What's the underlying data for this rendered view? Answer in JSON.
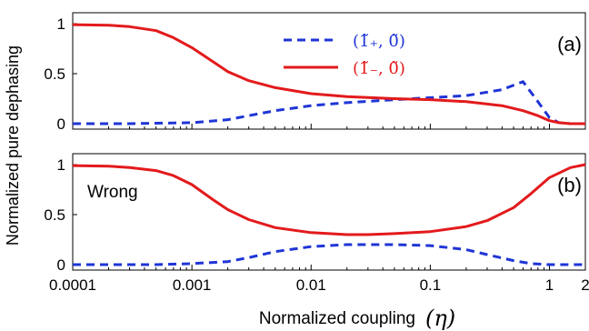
{
  "figure": {
    "ylabel": "Normalized pure dephasing",
    "xlabel": "Normalized coupling",
    "xlabel_symbol": "(η)"
  },
  "chart_data": [
    {
      "type": "line",
      "panel_label": "(a)",
      "x_scale": "log",
      "xlim": [
        0.0001,
        2
      ],
      "ylim": [
        0,
        1
      ],
      "y_ticks": [
        "0",
        "0.5",
        "1"
      ],
      "legend": {
        "placement": "top-center"
      },
      "grid": false,
      "series": [
        {
          "name": "(1̃₊, 0̃)",
          "color": "#1f35d6",
          "style": "dashed",
          "x": [
            0.0001,
            0.0003,
            0.001,
            0.002,
            0.003,
            0.005,
            0.01,
            0.02,
            0.05,
            0.1,
            0.2,
            0.4,
            0.6,
            0.8,
            1.0,
            1.2,
            1.5,
            2.0
          ],
          "y": [
            0.0,
            0.0,
            0.01,
            0.04,
            0.08,
            0.13,
            0.18,
            0.21,
            0.24,
            0.26,
            0.28,
            0.34,
            0.42,
            0.22,
            0.06,
            0.01,
            0.0,
            0.0
          ]
        },
        {
          "name": "(1̃₋, 0̃)",
          "color": "#e31a1c",
          "style": "solid",
          "x": [
            0.0001,
            0.0002,
            0.0003,
            0.0005,
            0.0007,
            0.001,
            0.0015,
            0.002,
            0.003,
            0.005,
            0.01,
            0.02,
            0.05,
            0.1,
            0.2,
            0.4,
            0.6,
            0.8,
            1.0,
            1.2,
            1.5,
            2.0
          ],
          "y": [
            0.99,
            0.985,
            0.97,
            0.93,
            0.86,
            0.76,
            0.62,
            0.52,
            0.43,
            0.36,
            0.3,
            0.27,
            0.25,
            0.24,
            0.22,
            0.18,
            0.13,
            0.08,
            0.03,
            0.01,
            0.0,
            0.0
          ]
        }
      ]
    },
    {
      "type": "line",
      "panel_label": "(b)",
      "annotation": "Wrong",
      "x_scale": "log",
      "xlim": [
        0.0001,
        2
      ],
      "ylim": [
        0,
        1
      ],
      "x_ticks": [
        "0.0001",
        "0.001",
        "0.01",
        "0.1",
        "1",
        "2"
      ],
      "y_ticks": [
        "0",
        "0.5",
        "1"
      ],
      "grid": false,
      "series": [
        {
          "color": "#1f35d6",
          "style": "dashed",
          "x": [
            0.0001,
            0.0005,
            0.001,
            0.002,
            0.003,
            0.005,
            0.01,
            0.02,
            0.03,
            0.05,
            0.1,
            0.2,
            0.3,
            0.5,
            0.7,
            1.0,
            1.5,
            2.0
          ],
          "y": [
            0.0,
            0.0,
            0.01,
            0.03,
            0.07,
            0.13,
            0.18,
            0.2,
            0.2,
            0.2,
            0.19,
            0.15,
            0.1,
            0.04,
            0.01,
            0.0,
            0.0,
            0.0
          ]
        },
        {
          "color": "#e31a1c",
          "style": "solid",
          "x": [
            0.0001,
            0.0002,
            0.0003,
            0.0005,
            0.0007,
            0.001,
            0.0015,
            0.002,
            0.003,
            0.005,
            0.01,
            0.02,
            0.03,
            0.05,
            0.1,
            0.2,
            0.3,
            0.5,
            0.7,
            1.0,
            1.5,
            2.0
          ],
          "y": [
            0.99,
            0.985,
            0.97,
            0.94,
            0.89,
            0.8,
            0.65,
            0.55,
            0.45,
            0.37,
            0.32,
            0.3,
            0.3,
            0.31,
            0.33,
            0.38,
            0.44,
            0.57,
            0.71,
            0.87,
            0.97,
            1.0
          ]
        }
      ]
    }
  ]
}
